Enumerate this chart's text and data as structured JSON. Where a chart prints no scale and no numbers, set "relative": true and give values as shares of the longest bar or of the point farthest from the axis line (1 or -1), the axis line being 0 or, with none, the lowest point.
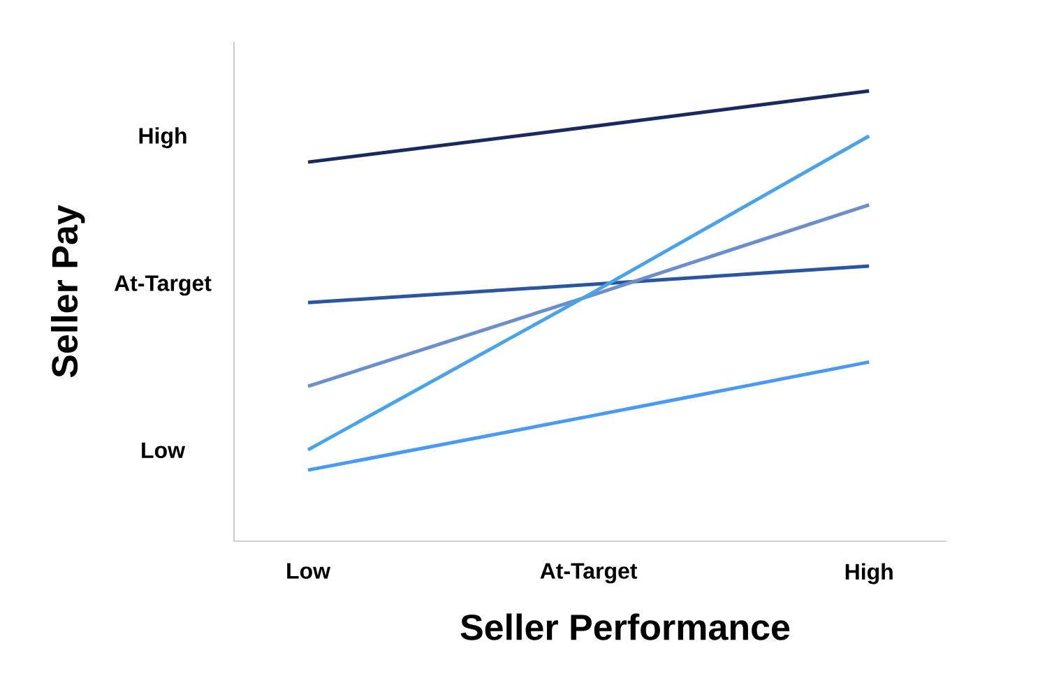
{
  "chart_data": {
    "type": "line",
    "xlabel": "Seller Performance",
    "ylabel": "Seller Pay",
    "relative": true,
    "categories": [
      "Low",
      "At-Target",
      "High"
    ],
    "annotations": [
      "High",
      "At-Target",
      "Low"
    ],
    "marker": "none",
    "line_style": "solid",
    "series": [
      {
        "color": "#1a2a5e",
        "values": [
          0.842,
          0.92,
          1.0
        ]
      },
      {
        "color": "#2b55a0",
        "values": [
          0.53,
          0.57,
          0.611
        ]
      },
      {
        "color": "#6b8fcc",
        "values": [
          0.344,
          0.544,
          0.747
        ]
      },
      {
        "color": "#4aa3e6",
        "values": [
          0.203,
          0.547,
          0.9
        ]
      },
      {
        "color": "#4a9af5",
        "values": [
          0.158,
          0.277,
          0.398
        ]
      }
    ]
  }
}
